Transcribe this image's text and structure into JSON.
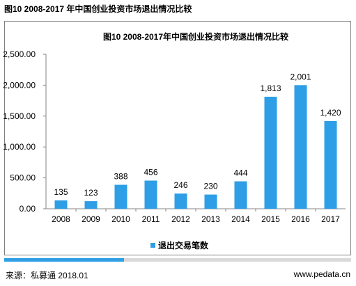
{
  "header": {
    "title": "图10 2008-2017 年中国创业投资市场退出情况比较"
  },
  "chart_data": {
    "type": "bar",
    "title": "图10 2008-2017年中国创业投资市场退出情况比较",
    "categories": [
      "2008",
      "2009",
      "2010",
      "2011",
      "2012",
      "2013",
      "2014",
      "2015",
      "2016",
      "2017"
    ],
    "series": [
      {
        "name": "退出交易笔数",
        "values": [
          135,
          123,
          388,
          456,
          246,
          230,
          444,
          1813,
          2001,
          1420
        ]
      }
    ],
    "value_labels": [
      "135",
      "123",
      "388",
      "456",
      "246",
      "230",
      "444",
      "1,813",
      "2,001",
      "1,420"
    ],
    "yticks": [
      "0.00",
      "500.00",
      "1,000.00",
      "1,500.00",
      "2,000.00",
      "2,500.00"
    ],
    "ylim": [
      0,
      2500
    ],
    "grid": false,
    "legend": "bottom",
    "bar_color": "#2e9ee6"
  },
  "footer": {
    "source": "来源：私募通 2018.01",
    "site": "www.pedata.cn",
    "accent_color": "#2e9ee6"
  }
}
